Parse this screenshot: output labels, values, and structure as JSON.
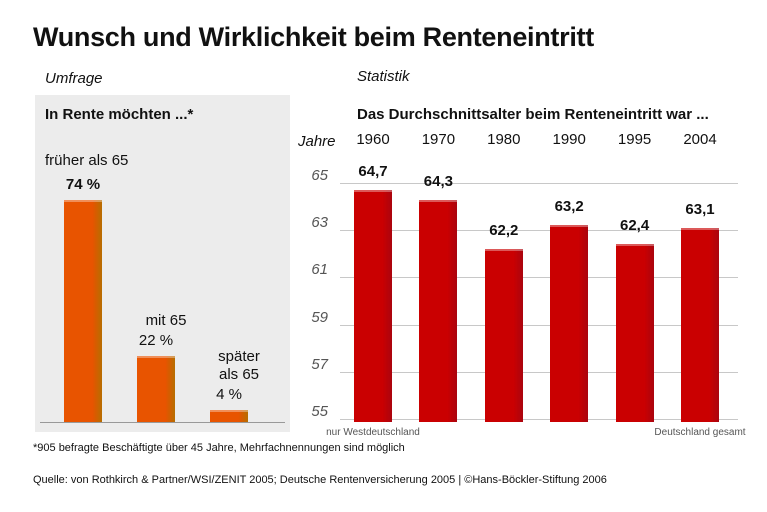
{
  "title": "Wunsch und Wirklichkeit beim Renteneintritt",
  "chart_data": [
    {
      "type": "bar",
      "section": "Umfrage",
      "title": "In Rente möchten ...*",
      "categories": [
        "früher als 65",
        "mit 65",
        "später als 65"
      ],
      "values": [
        74,
        22,
        4
      ],
      "value_labels": [
        "74 %",
        "22 %",
        "4 %"
      ],
      "color": "#f39200"
    },
    {
      "type": "bar",
      "section": "Statistik",
      "title": "Das Durchschnittsalter beim Renteneintritt war ...",
      "y_label": "Jahre",
      "categories": [
        "1960",
        "1970",
        "1980",
        "1990",
        "1995",
        "2004"
      ],
      "values": [
        64.7,
        64.3,
        62.2,
        63.2,
        62.4,
        63.1
      ],
      "value_labels": [
        "64,7",
        "64,3",
        "62,2",
        "63,2",
        "62,4",
        "63,1"
      ],
      "category_notes": [
        "nur Westdeutschland",
        null,
        null,
        null,
        null,
        "Deutschland gesamt"
      ],
      "color": "#e30613",
      "ylim": [
        55,
        65
      ],
      "yticks": [
        55,
        57,
        59,
        61,
        63,
        65
      ],
      "grid": true
    }
  ],
  "footnote": "*905 befragte Beschäftigte über 45 Jahre, Mehrfachnennungen sind möglich",
  "source": "Quelle: von Rothkirch & Partner/WSI/ZENIT 2005; Deutsche Rentenversicherung 2005 | ©Hans-Böckler-Stiftung 2006"
}
